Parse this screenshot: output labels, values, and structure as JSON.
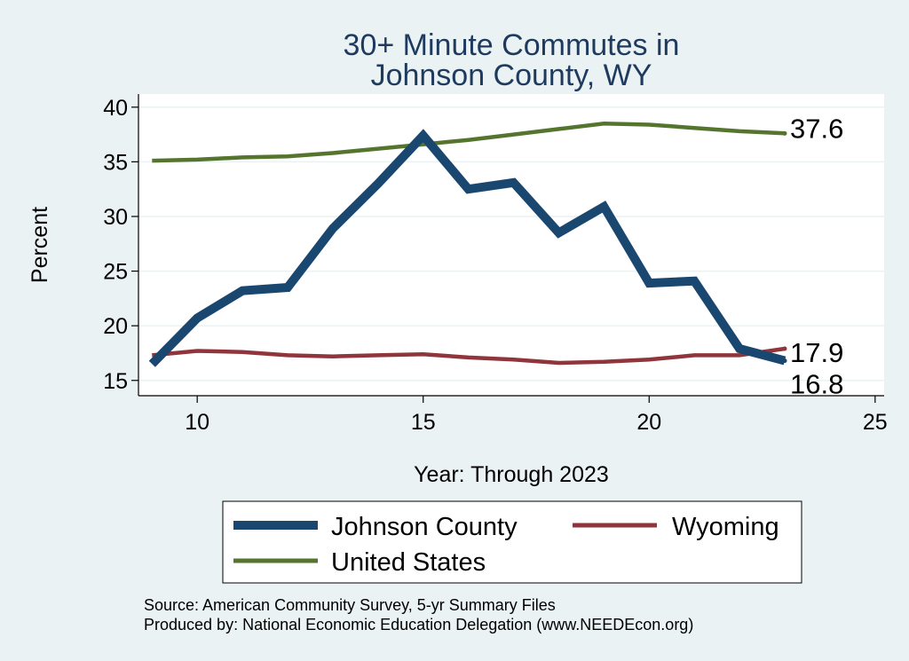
{
  "chart_data": {
    "type": "line",
    "title": [
      "30+ Minute Commutes in",
      "Johnson County, WY"
    ],
    "xlabel": "Year: Through 2023",
    "ylabel": "Percent",
    "xlim": [
      8.7,
      25.2
    ],
    "ylim": [
      13.6,
      41.2
    ],
    "xticks": [
      10,
      15,
      20,
      25
    ],
    "yticks": [
      15,
      20,
      25,
      30,
      35,
      40
    ],
    "grid": true,
    "series": [
      {
        "name": "Johnson County",
        "color": "#1a476f",
        "x": [
          9,
          10,
          11,
          12,
          13,
          14,
          15,
          16,
          17,
          18,
          19,
          20,
          21,
          22,
          23
        ],
        "y": [
          16.5,
          20.7,
          23.2,
          23.5,
          28.9,
          33.0,
          37.4,
          32.5,
          33.1,
          28.5,
          30.9,
          23.9,
          24.1,
          17.9,
          16.8
        ],
        "end_label": "16.8"
      },
      {
        "name": "Wyoming",
        "color": "#90353b",
        "x": [
          9,
          10,
          11,
          12,
          13,
          14,
          15,
          16,
          17,
          18,
          19,
          20,
          21,
          22,
          23
        ],
        "y": [
          17.3,
          17.7,
          17.6,
          17.3,
          17.2,
          17.3,
          17.4,
          17.1,
          16.9,
          16.6,
          16.7,
          16.9,
          17.3,
          17.3,
          17.9
        ],
        "end_label": "17.9"
      },
      {
        "name": "United States",
        "color": "#55752f",
        "x": [
          9,
          10,
          11,
          12,
          13,
          14,
          15,
          16,
          17,
          18,
          19,
          20,
          21,
          22,
          23
        ],
        "y": [
          35.1,
          35.2,
          35.4,
          35.5,
          35.8,
          36.2,
          36.6,
          37.0,
          37.5,
          38.0,
          38.5,
          38.4,
          38.1,
          37.8,
          37.6
        ],
        "end_label": "37.6"
      }
    ],
    "legend": {
      "placement": "bottom",
      "entries": [
        "Johnson County",
        "Wyoming",
        "United States"
      ]
    }
  },
  "notes": {
    "source": "Source: American Community Survey, 5-yr Summary Files",
    "producer": "Produced by: National Economic Education Delegation (www.NEEDEcon.org)"
  },
  "colors": {
    "background": "#eaf2f3",
    "plot_background": "#ffffff",
    "title": "#1f3a5f",
    "grid": "#eaf2f3"
  }
}
